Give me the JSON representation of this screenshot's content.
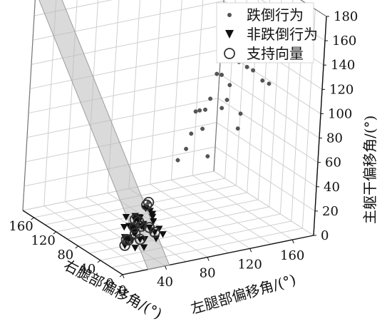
{
  "chart_data": {
    "type": "scatter",
    "title": "",
    "xlabel": "右腿部偏移角/(°)",
    "ylabel": "左腿部偏移角/(°)",
    "zlabel": "主躯干偏移角/(°)",
    "xlim": [
      0,
      180
    ],
    "ylim": [
      0,
      180
    ],
    "zlim": [
      0,
      180
    ],
    "x_ticks": [
      "0",
      "40",
      "80",
      "120",
      "160"
    ],
    "y_ticks": [
      "0",
      "40",
      "80",
      "120",
      "160"
    ],
    "z_ticks": [
      "0",
      "20",
      "40",
      "60",
      "80",
      "100",
      "120",
      "140",
      "160",
      "180"
    ],
    "grid": true,
    "legend_position": "top-right",
    "legend": [
      {
        "label": "跌倒行为",
        "marker": "dot",
        "color": "#555555"
      },
      {
        "label": "非跌倒行为",
        "marker": "triangle-down",
        "color": "#111111"
      },
      {
        "label": "支持向量",
        "marker": "circle-open",
        "color": "#333333"
      }
    ],
    "series": [
      {
        "name": "跌倒行为",
        "marker": "dot",
        "color": "#555555",
        "points": [
          {
            "x": 20,
            "y": 155,
            "z": 142
          },
          {
            "x": 30,
            "y": 165,
            "z": 150
          },
          {
            "x": 40,
            "y": 160,
            "z": 140
          },
          {
            "x": 50,
            "y": 150,
            "z": 118
          },
          {
            "x": 60,
            "y": 140,
            "z": 128
          },
          {
            "x": 70,
            "y": 130,
            "z": 112
          },
          {
            "x": 80,
            "y": 160,
            "z": 132
          },
          {
            "x": 95,
            "y": 145,
            "z": 126
          },
          {
            "x": 110,
            "y": 155,
            "z": 122
          },
          {
            "x": 55,
            "y": 120,
            "z": 106
          },
          {
            "x": 65,
            "y": 100,
            "z": 98
          },
          {
            "x": 40,
            "y": 90,
            "z": 92
          },
          {
            "x": 30,
            "y": 70,
            "z": 82
          },
          {
            "x": 25,
            "y": 60,
            "z": 76
          },
          {
            "x": 20,
            "y": 30,
            "z": 46
          },
          {
            "x": 35,
            "y": 40,
            "z": 42
          },
          {
            "x": 10,
            "y": 80,
            "z": 80
          },
          {
            "x": 15,
            "y": 110,
            "z": 96
          },
          {
            "x": 45,
            "y": 110,
            "z": 104
          },
          {
            "x": 60,
            "y": 170,
            "z": 132
          },
          {
            "x": 85,
            "y": 130,
            "z": 116
          },
          {
            "x": 100,
            "y": 170,
            "z": 138
          },
          {
            "x": 120,
            "y": 165,
            "z": 110
          },
          {
            "x": 75,
            "y": 115,
            "z": 102
          },
          {
            "x": 50,
            "y": 85,
            "z": 86
          },
          {
            "x": 30,
            "y": 120,
            "z": 102
          },
          {
            "x": 40,
            "y": 135,
            "z": 132
          },
          {
            "x": 70,
            "y": 150,
            "z": 146
          },
          {
            "x": 90,
            "y": 110,
            "z": 88
          },
          {
            "x": 110,
            "y": 130,
            "z": 80
          },
          {
            "x": 130,
            "y": 150,
            "z": 100
          },
          {
            "x": 20,
            "y": 140,
            "z": 126
          },
          {
            "x": 10,
            "y": 150,
            "z": 164
          },
          {
            "x": 25,
            "y": 175,
            "z": 174
          }
        ]
      },
      {
        "name": "非跌倒行为",
        "marker": "triangle-down",
        "color": "#111111",
        "points": [
          {
            "x": 0,
            "y": 4,
            "z": 30
          },
          {
            "x": 2,
            "y": 8,
            "z": 26
          },
          {
            "x": 4,
            "y": 12,
            "z": 34
          },
          {
            "x": 6,
            "y": 18,
            "z": 24
          },
          {
            "x": 8,
            "y": 22,
            "z": 32
          },
          {
            "x": 10,
            "y": 6,
            "z": 20
          },
          {
            "x": 12,
            "y": 15,
            "z": 28
          },
          {
            "x": 14,
            "y": 20,
            "z": 36
          },
          {
            "x": 16,
            "y": 10,
            "z": 22
          },
          {
            "x": 18,
            "y": 25,
            "z": 30
          },
          {
            "x": 20,
            "y": 30,
            "z": 18
          },
          {
            "x": 22,
            "y": 35,
            "z": 26
          },
          {
            "x": 24,
            "y": 12,
            "z": 30
          },
          {
            "x": 26,
            "y": 24,
            "z": 22
          },
          {
            "x": 28,
            "y": 28,
            "z": 34
          },
          {
            "x": 30,
            "y": 20,
            "z": 16
          },
          {
            "x": 3,
            "y": 28,
            "z": 38
          },
          {
            "x": 5,
            "y": 35,
            "z": 30
          },
          {
            "x": 7,
            "y": 40,
            "z": 24
          },
          {
            "x": 9,
            "y": 30,
            "z": 42
          },
          {
            "x": 11,
            "y": 36,
            "z": 20
          },
          {
            "x": 13,
            "y": 26,
            "z": 14
          },
          {
            "x": 15,
            "y": 33,
            "z": 26
          },
          {
            "x": 17,
            "y": 18,
            "z": 40
          },
          {
            "x": 19,
            "y": 14,
            "z": 32
          },
          {
            "x": 21,
            "y": 22,
            "z": 12
          },
          {
            "x": 23,
            "y": 38,
            "z": 34
          },
          {
            "x": 25,
            "y": 42,
            "z": 20
          },
          {
            "x": 27,
            "y": 32,
            "z": 28
          },
          {
            "x": 29,
            "y": 16,
            "z": 36
          },
          {
            "x": 31,
            "y": 24,
            "z": 24
          },
          {
            "x": 33,
            "y": 18,
            "z": 18
          },
          {
            "x": 35,
            "y": 28,
            "z": 30
          },
          {
            "x": 37,
            "y": 22,
            "z": 14
          },
          {
            "x": 39,
            "y": 30,
            "z": 22
          },
          {
            "x": 1,
            "y": 14,
            "z": 44
          },
          {
            "x": 3,
            "y": 20,
            "z": 50
          },
          {
            "x": 6,
            "y": 26,
            "z": 46
          }
        ]
      },
      {
        "name": "支持向量",
        "marker": "circle-open",
        "color": "#333333",
        "points": [
          {
            "x": 6,
            "y": 18,
            "z": 24
          },
          {
            "x": 10,
            "y": 6,
            "z": 20
          },
          {
            "x": 14,
            "y": 20,
            "z": 36
          },
          {
            "x": 18,
            "y": 25,
            "z": 30
          },
          {
            "x": 22,
            "y": 35,
            "z": 26
          },
          {
            "x": 26,
            "y": 24,
            "z": 22
          },
          {
            "x": 30,
            "y": 20,
            "z": 16
          },
          {
            "x": 35,
            "y": 28,
            "z": 30
          },
          {
            "x": 20,
            "y": 30,
            "z": 46
          },
          {
            "x": 35,
            "y": 40,
            "z": 42
          },
          {
            "x": 37,
            "y": 22,
            "z": 14
          },
          {
            "x": 39,
            "y": 30,
            "z": 22
          },
          {
            "x": 25,
            "y": 42,
            "z": 20
          }
        ]
      }
    ],
    "plane_color": "#bcbcbc"
  }
}
